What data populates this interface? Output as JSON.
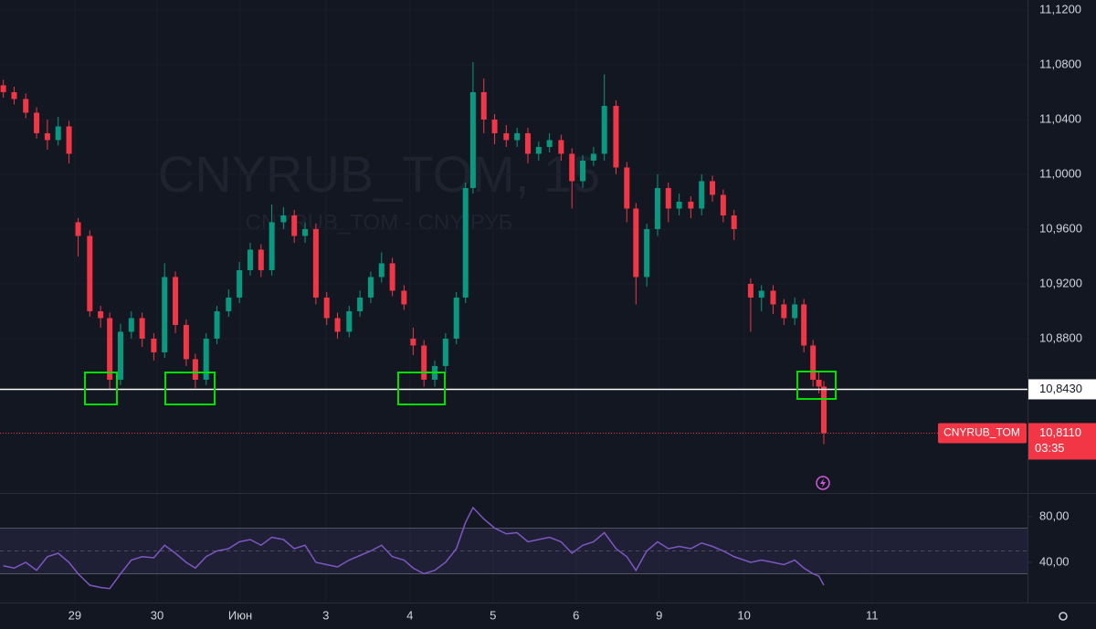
{
  "watermark": {
    "title": "CNYRUB_TOM, 15",
    "subtitle": "CNYRUB_TOM - CNY/РУБ"
  },
  "chart_data": [
    {
      "type": "candlestick",
      "x": [
        -0.86,
        -0.73,
        -0.59,
        -0.46,
        -0.33,
        -0.2,
        -0.07,
        0.04,
        0.18,
        0.31,
        0.42,
        0.55,
        0.68,
        0.81,
        0.95,
        1.08,
        1.21,
        1.34,
        1.45,
        1.58,
        1.71,
        1.85,
        1.98,
        2.11,
        2.24,
        2.37,
        2.51,
        2.64,
        2.77,
        2.9,
        3.03,
        3.16,
        3.3,
        3.43,
        3.56,
        3.69,
        3.82,
        3.96,
        4.07,
        4.2,
        4.33,
        4.46,
        4.59,
        4.7,
        4.79,
        4.92,
        5.05,
        5.19,
        5.32,
        5.45,
        5.58,
        5.71,
        5.85,
        5.98,
        6.11,
        6.24,
        6.37,
        6.51,
        6.64,
        6.75,
        6.88,
        7.01,
        7.14,
        7.27,
        7.41,
        7.54,
        7.67,
        7.8,
        7.93,
        8.13,
        8.26,
        8.4,
        8.53,
        8.66,
        8.77,
        8.88,
        8.95,
        9.01
      ],
      "open": [
        11.065,
        11.06,
        11.055,
        11.045,
        11.03,
        11.025,
        11.035,
        10.965,
        10.955,
        10.9,
        10.895,
        10.85,
        10.885,
        10.895,
        10.88,
        10.87,
        10.925,
        10.89,
        10.865,
        10.85,
        10.88,
        10.9,
        10.91,
        10.93,
        10.945,
        10.93,
        10.965,
        10.97,
        10.955,
        10.96,
        10.91,
        10.895,
        10.885,
        10.9,
        10.91,
        10.925,
        10.935,
        10.915,
        10.88,
        10.875,
        10.85,
        10.86,
        10.88,
        10.91,
        10.99,
        11.06,
        11.04,
        11.03,
        11.025,
        11.03,
        11.015,
        11.02,
        11.025,
        11.015,
        10.995,
        11.01,
        11.015,
        11.05,
        11.005,
        10.975,
        10.925,
        10.96,
        10.99,
        10.975,
        10.98,
        10.975,
        10.995,
        10.985,
        10.97,
        10.92,
        10.91,
        10.915,
        10.905,
        10.895,
        10.905,
        10.875,
        10.85,
        10.845
      ],
      "high": [
        11.069,
        11.064,
        11.059,
        11.049,
        11.04,
        11.042,
        11.039,
        10.968,
        10.959,
        10.904,
        10.899,
        10.891,
        10.9,
        10.899,
        10.884,
        10.935,
        10.929,
        10.894,
        10.869,
        10.884,
        10.904,
        10.916,
        10.936,
        10.95,
        10.949,
        10.978,
        10.976,
        10.974,
        10.965,
        10.964,
        10.914,
        10.899,
        10.904,
        10.915,
        10.929,
        10.943,
        10.939,
        10.919,
        10.888,
        10.879,
        10.864,
        10.884,
        10.914,
        10.994,
        11.082,
        11.07,
        11.044,
        11.036,
        11.034,
        11.034,
        11.024,
        11.03,
        11.029,
        11.019,
        11.014,
        11.02,
        11.073,
        11.054,
        11.009,
        10.979,
        10.964,
        11.0,
        10.994,
        10.986,
        10.984,
        11.0,
        10.999,
        10.989,
        10.974,
        10.924,
        10.919,
        10.919,
        10.909,
        10.91,
        10.909,
        10.879,
        10.856,
        10.849
      ],
      "low": [
        11.056,
        11.051,
        11.041,
        11.026,
        11.018,
        11.021,
        11.008,
        10.94,
        10.896,
        10.888,
        10.843,
        10.846,
        10.88,
        10.874,
        10.864,
        10.866,
        10.884,
        10.86,
        10.844,
        10.846,
        10.876,
        10.896,
        10.906,
        10.926,
        10.925,
        10.926,
        10.96,
        10.95,
        10.95,
        10.905,
        10.89,
        10.88,
        10.881,
        10.896,
        10.906,
        10.921,
        10.911,
        10.901,
        10.868,
        10.845,
        10.845,
        10.856,
        10.876,
        10.906,
        10.986,
        11.03,
        11.022,
        11.02,
        11.02,
        11.008,
        11.01,
        11.016,
        11.01,
        10.975,
        10.99,
        11.006,
        11.01,
        11.0,
        10.965,
        10.905,
        10.918,
        10.955,
        10.965,
        10.97,
        10.968,
        10.97,
        10.98,
        10.965,
        10.952,
        10.885,
        10.9,
        10.898,
        10.89,
        10.89,
        10.87,
        10.845,
        10.84,
        10.803
      ],
      "close": [
        11.06,
        11.055,
        11.045,
        11.03,
        11.025,
        11.035,
        11.015,
        10.955,
        10.9,
        10.895,
        10.85,
        10.885,
        10.895,
        10.88,
        10.87,
        10.925,
        10.89,
        10.865,
        10.85,
        10.88,
        10.9,
        10.91,
        10.93,
        10.945,
        10.93,
        10.965,
        10.97,
        10.955,
        10.96,
        10.91,
        10.895,
        10.885,
        10.9,
        10.91,
        10.925,
        10.935,
        10.915,
        10.905,
        10.875,
        10.85,
        10.86,
        10.88,
        10.91,
        10.99,
        11.06,
        11.04,
        11.03,
        11.025,
        11.03,
        11.015,
        11.02,
        11.025,
        11.015,
        10.995,
        11.01,
        11.015,
        11.05,
        11.005,
        10.975,
        10.925,
        10.96,
        10.99,
        10.975,
        10.98,
        10.975,
        10.995,
        10.985,
        10.97,
        10.96,
        10.91,
        10.915,
        10.905,
        10.895,
        10.905,
        10.875,
        10.85,
        10.845,
        10.811
      ],
      "up_color": "#089981",
      "down_color": "#f23645",
      "xlim": [
        -0.9,
        11.46
      ],
      "xticks": [
        {
          "value": 0,
          "label": "29"
        },
        {
          "value": 0.99,
          "label": "30"
        },
        {
          "value": 1.99,
          "label": "Июн"
        },
        {
          "value": 3.02,
          "label": "3"
        },
        {
          "value": 4.03,
          "label": "4"
        },
        {
          "value": 5.03,
          "label": "5"
        },
        {
          "value": 6.03,
          "label": "6"
        },
        {
          "value": 7.03,
          "label": "9"
        },
        {
          "value": 8.05,
          "label": "10"
        },
        {
          "value": 9.59,
          "label": "11"
        }
      ],
      "ylim": [
        10.7673,
        11.1273
      ],
      "yticks": [
        {
          "value": 11.12,
          "label": "11,1200"
        },
        {
          "value": 11.08,
          "label": "11,0800"
        },
        {
          "value": 11.04,
          "label": "11,0400"
        },
        {
          "value": 11.0,
          "label": "11,0000"
        },
        {
          "value": 10.96,
          "label": "10,9600"
        },
        {
          "value": 10.92,
          "label": "10,9200"
        },
        {
          "value": 10.88,
          "label": "10,8800"
        }
      ],
      "level": {
        "value": 10.843,
        "label": "10,8430"
      },
      "last": {
        "name": "CNYRUB_TOM",
        "value": 10.811,
        "label": "10,8110",
        "countdown": "03:35"
      }
    },
    {
      "type": "line",
      "x": [
        -0.86,
        -0.73,
        -0.59,
        -0.46,
        -0.33,
        -0.2,
        -0.07,
        0.04,
        0.18,
        0.31,
        0.42,
        0.55,
        0.68,
        0.81,
        0.95,
        1.08,
        1.21,
        1.34,
        1.45,
        1.58,
        1.71,
        1.85,
        1.98,
        2.11,
        2.24,
        2.37,
        2.51,
        2.64,
        2.77,
        2.9,
        3.03,
        3.16,
        3.3,
        3.43,
        3.56,
        3.69,
        3.82,
        3.96,
        4.07,
        4.2,
        4.33,
        4.46,
        4.59,
        4.7,
        4.79,
        4.92,
        5.05,
        5.19,
        5.32,
        5.45,
        5.58,
        5.71,
        5.85,
        5.98,
        6.11,
        6.24,
        6.37,
        6.51,
        6.64,
        6.75,
        6.88,
        7.01,
        7.14,
        7.27,
        7.41,
        7.54,
        7.67,
        7.8,
        7.93,
        8.13,
        8.26,
        8.4,
        8.53,
        8.66,
        8.77,
        8.88,
        8.95,
        9.01
      ],
      "values": [
        37,
        35,
        40,
        33,
        45,
        48,
        40,
        30,
        20,
        18,
        17,
        30,
        42,
        45,
        44,
        55,
        48,
        40,
        35,
        45,
        50,
        52,
        58,
        60,
        55,
        62,
        60,
        52,
        55,
        40,
        38,
        36,
        42,
        46,
        50,
        55,
        45,
        42,
        35,
        30,
        33,
        40,
        52,
        75,
        88,
        78,
        70,
        65,
        66,
        58,
        60,
        62,
        58,
        48,
        55,
        58,
        66,
        52,
        45,
        33,
        50,
        58,
        52,
        54,
        52,
        57,
        54,
        50,
        45,
        40,
        42,
        40,
        38,
        42,
        35,
        30,
        28,
        20
      ],
      "color": "#7e57c2",
      "ylim": [
        4.8,
        100
      ],
      "yticks": [
        {
          "value": 80,
          "label": "80,00"
        },
        {
          "value": 40,
          "label": "40,00"
        }
      ],
      "bands": [
        30,
        70
      ],
      "mid": 50
    }
  ]
}
